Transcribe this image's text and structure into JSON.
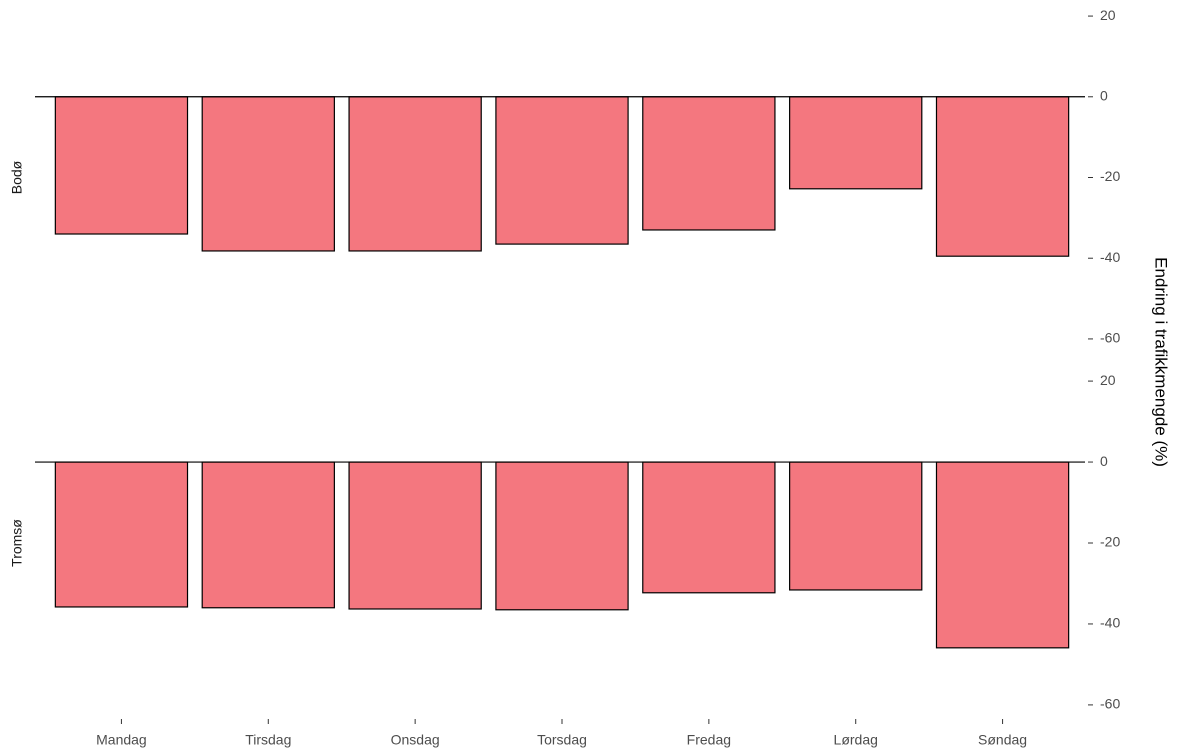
{
  "chart_data": {
    "type": "bar",
    "categories": [
      "Mandag",
      "Tirsdag",
      "Onsdag",
      "Torsdag",
      "Fredag",
      "Lørdag",
      "Søndag"
    ],
    "y_label": "Endring i trafikkmengde (%)",
    "color": "#f4777f",
    "ylim": [
      -62,
      22
    ],
    "yticks": [
      20,
      0,
      -20,
      -40,
      -60
    ],
    "facets": [
      {
        "name": "Bodø",
        "values": [
          -34,
          -38.2,
          -38.2,
          -36.5,
          -33,
          -22.8,
          -39.5
        ]
      },
      {
        "name": "Tromsø",
        "values": [
          -35.8,
          -36,
          -36.3,
          -36.5,
          -32.3,
          -31.6,
          -45.9
        ]
      }
    ]
  }
}
